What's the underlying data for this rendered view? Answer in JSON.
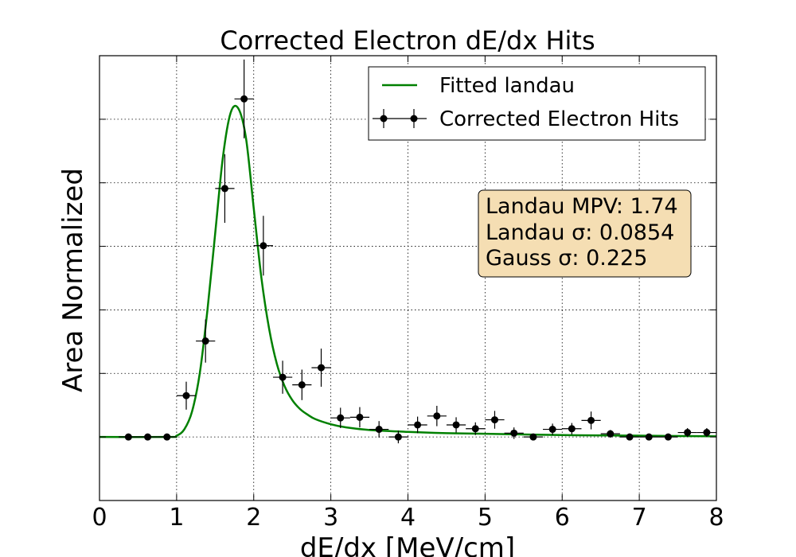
{
  "chart_data": {
    "type": "scatter",
    "title": "Corrected Electron dE/dx Hits",
    "xlabel": "dE/dx [MeV/cm]",
    "ylabel": "Area Normalized",
    "xlim": [
      0,
      8
    ],
    "ylim": [
      -0.1,
      0.6
    ],
    "x_ticks": [
      "0",
      "1",
      "2",
      "3",
      "4",
      "5",
      "6",
      "7",
      "8"
    ],
    "grid": true,
    "y_tick_labels_shown": false,
    "legend_position": "top-right",
    "series": [
      {
        "name": "Fitted landau",
        "kind": "line",
        "color": "#008000",
        "x": [
          0.0,
          0.9,
          1.0,
          1.1,
          1.2,
          1.3,
          1.4,
          1.5,
          1.6,
          1.7,
          1.8,
          1.9,
          2.0,
          2.1,
          2.2,
          2.3,
          2.4,
          2.5,
          2.6,
          2.7,
          2.8,
          3.0,
          3.2,
          3.5,
          4.0,
          4.5,
          5.0,
          6.0,
          7.0,
          8.0
        ],
        "y": [
          0.0,
          0.0,
          0.002,
          0.012,
          0.04,
          0.1,
          0.2,
          0.32,
          0.44,
          0.51,
          0.517,
          0.47,
          0.36,
          0.25,
          0.17,
          0.115,
          0.08,
          0.058,
          0.044,
          0.035,
          0.028,
          0.02,
          0.015,
          0.011,
          0.008,
          0.006,
          0.005,
          0.003,
          0.002,
          0.001
        ]
      },
      {
        "name": "Corrected Electron Hits",
        "kind": "errorbar",
        "color": "#000000",
        "x": [
          0.375,
          0.625,
          0.875,
          1.125,
          1.375,
          1.625,
          1.875,
          2.125,
          2.375,
          2.625,
          2.875,
          3.125,
          3.375,
          3.625,
          3.875,
          4.125,
          4.375,
          4.625,
          4.875,
          5.125,
          5.375,
          5.625,
          5.875,
          6.125,
          6.375,
          6.625,
          6.875,
          7.125,
          7.375,
          7.625,
          7.875
        ],
        "y": [
          0.0,
          0.0,
          0.0,
          0.065,
          0.151,
          0.391,
          0.532,
          0.301,
          0.094,
          0.082,
          0.109,
          0.03,
          0.031,
          0.012,
          0.0,
          0.019,
          0.033,
          0.019,
          0.013,
          0.027,
          0.006,
          0.0,
          0.012,
          0.013,
          0.026,
          0.005,
          0.0,
          0.0,
          0.0,
          0.007,
          0.007
        ],
        "yerr": [
          0.0,
          0.0,
          0.0,
          0.022,
          0.034,
          0.054,
          0.062,
          0.047,
          0.026,
          0.024,
          0.03,
          0.016,
          0.016,
          0.013,
          0.01,
          0.013,
          0.016,
          0.012,
          0.01,
          0.014,
          0.009,
          0.004,
          0.009,
          0.009,
          0.014,
          0.006,
          0.003,
          0.003,
          0.003,
          0.007,
          0.007
        ],
        "xerr": 0.125
      }
    ],
    "annotation": {
      "lines": [
        "Landau MPV: 1.74",
        "Landau σ: 0.0854",
        "Gauss σ: 0.225"
      ],
      "box_color": "#f5deb3",
      "position": "right, upper-middle"
    }
  }
}
